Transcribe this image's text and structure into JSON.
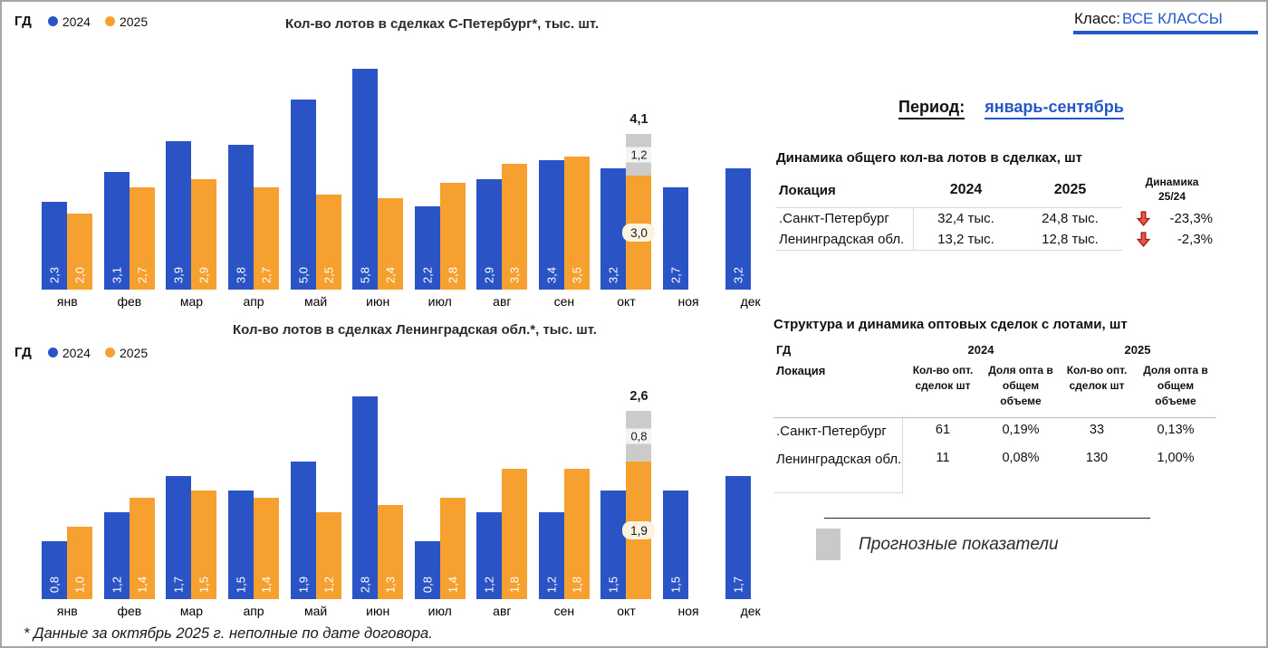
{
  "header": {
    "class_label": "Класс:",
    "class_value": "ВСЕ КЛАССЫ"
  },
  "period": {
    "label": "Период:",
    "value": "январь-сентябрь"
  },
  "colors": {
    "bar_blue": "#2a53c6",
    "bar_orange": "#f5a02f",
    "forecast_gray": "#cbcbcb",
    "forecast_band": "#f4f4f4",
    "actual_pill": "#fbf2df",
    "accent_blue": "#2457c9",
    "negative_red": "#c21807"
  },
  "chart_data": [
    {
      "type": "bar",
      "title": "Кол-во лотов в сделках С-Петербург*, тыс. шт.",
      "legend_label": "ГД",
      "categories": [
        "янв",
        "фев",
        "мар",
        "апр",
        "май",
        "июн",
        "июл",
        "авг",
        "сен",
        "окт",
        "ноя",
        "дек"
      ],
      "ylim": [
        0,
        6.0
      ],
      "series": [
        {
          "name": "2024",
          "color": "#2a53c6",
          "values": [
            2.3,
            3.1,
            3.9,
            3.8,
            5.0,
            5.8,
            2.2,
            2.9,
            3.4,
            3.2,
            2.7,
            3.2
          ],
          "labels": [
            "2,3",
            "3,1",
            "3,9",
            "3,8",
            "5,0",
            "5,8",
            "2,2",
            "2,9",
            "3,4",
            "3,2",
            "2,7",
            "3,2"
          ]
        },
        {
          "name": "2025",
          "color": "#f5a02f",
          "values": [
            2.0,
            2.7,
            2.9,
            2.7,
            2.5,
            2.4,
            2.8,
            3.3,
            3.5,
            3.0,
            null,
            null
          ],
          "labels": [
            "2,0",
            "2,7",
            "2,9",
            "2,7",
            "2,5",
            "2,4",
            "2,8",
            "3,3",
            "3,5",
            null,
            null,
            null
          ]
        }
      ],
      "forecast": {
        "category": "окт",
        "series": "2025",
        "actual": 3.0,
        "actual_label": "3,0",
        "forecast": 1.2,
        "forecast_label": "1,2",
        "total": 4.1,
        "total_label": "4,1"
      }
    },
    {
      "type": "bar",
      "title": "Кол-во лотов в сделках Ленинградская обл.*, тыс. шт.",
      "legend_label": "ГД",
      "categories": [
        "янв",
        "фев",
        "мар",
        "апр",
        "май",
        "июн",
        "июл",
        "авг",
        "сен",
        "окт",
        "ноя",
        "дек"
      ],
      "ylim": [
        0,
        2.9
      ],
      "series": [
        {
          "name": "2024",
          "color": "#2a53c6",
          "values": [
            0.8,
            1.2,
            1.7,
            1.5,
            1.9,
            2.8,
            0.8,
            1.2,
            1.2,
            1.5,
            1.5,
            1.7
          ],
          "labels": [
            "0,8",
            "1,2",
            "1,7",
            "1,5",
            "1,9",
            "2,8",
            "0,8",
            "1,2",
            "1,2",
            "1,5",
            "1,5",
            "1,7"
          ]
        },
        {
          "name": "2025",
          "color": "#f5a02f",
          "values": [
            1.0,
            1.4,
            1.5,
            1.4,
            1.2,
            1.3,
            1.4,
            1.8,
            1.8,
            1.9,
            null,
            null
          ],
          "labels": [
            "1,0",
            "1,4",
            "1,5",
            "1,4",
            "1,2",
            "1,3",
            "1,4",
            "1,8",
            "1,8",
            null,
            null,
            null
          ]
        }
      ],
      "forecast": {
        "category": "окт",
        "series": "2025",
        "actual": 1.9,
        "actual_label": "1,9",
        "forecast": 0.8,
        "forecast_label": "0,8",
        "total": 2.6,
        "total_label": "2,6"
      }
    }
  ],
  "table1": {
    "title": "Динамика общего кол-ва лотов в сделках, шт",
    "col_location": "Локация",
    "col_2024": "2024",
    "col_2025": "2025",
    "col_dynamics": "Динамика 25/24",
    "rows": [
      {
        "location": ".Санкт-Петербург",
        "y2024": "32,4 тыс.",
        "y2025": "24,8 тыс.",
        "dynamics": "-23,3%"
      },
      {
        "location": "Ленинградская обл.",
        "y2024": "13,2 тыс.",
        "y2025": "12,8 тыс.",
        "dynamics": "-2,3%"
      }
    ]
  },
  "table2": {
    "title": "Структура и динамика оптовых сделок с лотами, шт",
    "gd_label": "ГД",
    "year_2024": "2024",
    "year_2025": "2025",
    "col_location": "Локация",
    "col_count_2024": "Кол-во опт. сделок шт",
    "col_share_2024": "Доля опта в общем объеме",
    "col_count_2025": "Кол-во опт. сделок шт",
    "col_share_2025": "Доля опта в общем объеме",
    "rows": [
      {
        "location": ".Санкт-Петербург",
        "count_2024": "61",
        "share_2024": "0,19%",
        "count_2025": "33",
        "share_2025": "0,13%"
      },
      {
        "location": "Ленинградская обл.",
        "count_2024": "11",
        "share_2024": "0,08%",
        "count_2025": "130",
        "share_2025": "1,00%"
      }
    ]
  },
  "forecast_legend": {
    "label": "Прогнозные показатели"
  },
  "footnote": "* Данные за октябрь 2025 г. неполные по дате договора."
}
